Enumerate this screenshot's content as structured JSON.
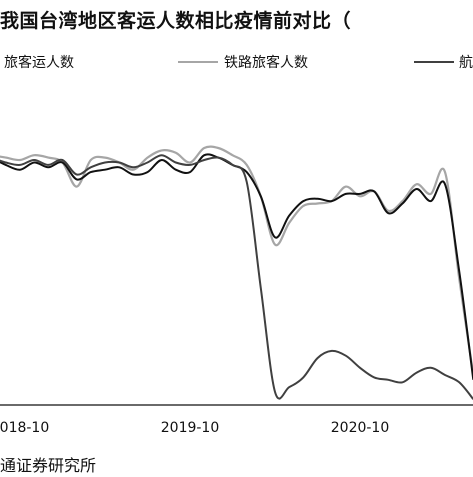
{
  "title": "我国台湾地区客运人数相比疫情前对比（",
  "legend": [
    {
      "label": "铁路旅客人数",
      "color": "#a6a6a6"
    },
    {
      "label": "旅客运人数",
      "color": "#111111"
    },
    {
      "label": "航",
      "color": "#404040"
    }
  ],
  "source": "通证券研究所",
  "chart_data": {
    "type": "line",
    "x_ticks": [
      "2018-10",
      "2019-10",
      "2020-10"
    ],
    "ylim": [
      0,
      1.3
    ],
    "grid": false,
    "legend_position": "top",
    "series": [
      {
        "color": "#a6a6a6",
        "x": [
          "2018-08",
          "2018-09",
          "2018-10",
          "2018-11",
          "2018-12",
          "2019-01",
          "2019-02",
          "2019-03",
          "2019-04",
          "2019-05",
          "2019-06",
          "2019-07",
          "2019-08",
          "2019-09",
          "2019-10",
          "2019-11",
          "2019-12",
          "2020-01",
          "2020-02",
          "2020-03",
          "2020-04",
          "2020-05",
          "2020-06",
          "2020-07",
          "2020-08",
          "2020-09",
          "2020-10",
          "2020-11",
          "2020-12",
          "2021-01",
          "2021-02",
          "2021-03",
          "2021-04",
          "2021-05",
          "2021-06"
        ],
        "values": [
          1.03,
          1.02,
          1.01,
          1.03,
          1.02,
          1.0,
          0.9,
          1.01,
          1.02,
          1.0,
          0.97,
          1.02,
          1.05,
          1.04,
          1.0,
          1.06,
          1.06,
          1.03,
          0.99,
          0.86,
          0.66,
          0.75,
          0.82,
          0.83,
          0.84,
          0.9,
          0.86,
          0.88,
          0.8,
          0.84,
          0.91,
          0.87,
          0.96,
          0.52,
          0.12
        ]
      },
      {
        "color": "#111111",
        "x": [
          "2018-08",
          "2018-09",
          "2018-10",
          "2018-11",
          "2018-12",
          "2019-01",
          "2019-02",
          "2019-03",
          "2019-04",
          "2019-05",
          "2019-06",
          "2019-07",
          "2019-08",
          "2019-09",
          "2019-10",
          "2019-11",
          "2019-12",
          "2020-01",
          "2020-02",
          "2020-03",
          "2020-04",
          "2020-05",
          "2020-06",
          "2020-07",
          "2020-08",
          "2020-09",
          "2020-10",
          "2020-11",
          "2020-12",
          "2021-01",
          "2021-02",
          "2021-03",
          "2021-04",
          "2021-05",
          "2021-06"
        ],
        "values": [
          1.02,
          0.99,
          0.97,
          1.0,
          0.98,
          1.0,
          0.93,
          0.96,
          0.97,
          0.98,
          0.95,
          0.96,
          1.01,
          0.97,
          0.96,
          1.03,
          1.02,
          0.99,
          0.96,
          0.86,
          0.69,
          0.78,
          0.84,
          0.85,
          0.84,
          0.87,
          0.87,
          0.88,
          0.79,
          0.83,
          0.89,
          0.84,
          0.91,
          0.55,
          0.1
        ]
      },
      {
        "color": "#404040",
        "x": [
          "2018-08",
          "2018-09",
          "2018-10",
          "2018-11",
          "2018-12",
          "2019-01",
          "2019-02",
          "2019-03",
          "2019-04",
          "2019-05",
          "2019-06",
          "2019-07",
          "2019-08",
          "2019-09",
          "2019-10",
          "2019-11",
          "2019-12",
          "2020-01",
          "2020-02",
          "2020-03",
          "2020-04",
          "2020-05",
          "2020-06",
          "2020-07",
          "2020-08",
          "2020-09",
          "2020-10",
          "2020-11",
          "2020-12",
          "2021-01",
          "2021-02",
          "2021-03",
          "2021-04",
          "2021-05",
          "2021-06"
        ],
        "values": [
          1.02,
          1.0,
          0.99,
          1.01,
          0.99,
          1.01,
          0.95,
          0.98,
          1.0,
          1.0,
          0.98,
          1.0,
          1.03,
          1.0,
          0.99,
          1.01,
          1.02,
          0.99,
          0.92,
          0.48,
          0.05,
          0.07,
          0.11,
          0.19,
          0.22,
          0.2,
          0.15,
          0.11,
          0.1,
          0.09,
          0.13,
          0.15,
          0.12,
          0.09,
          0.02
        ]
      }
    ]
  }
}
